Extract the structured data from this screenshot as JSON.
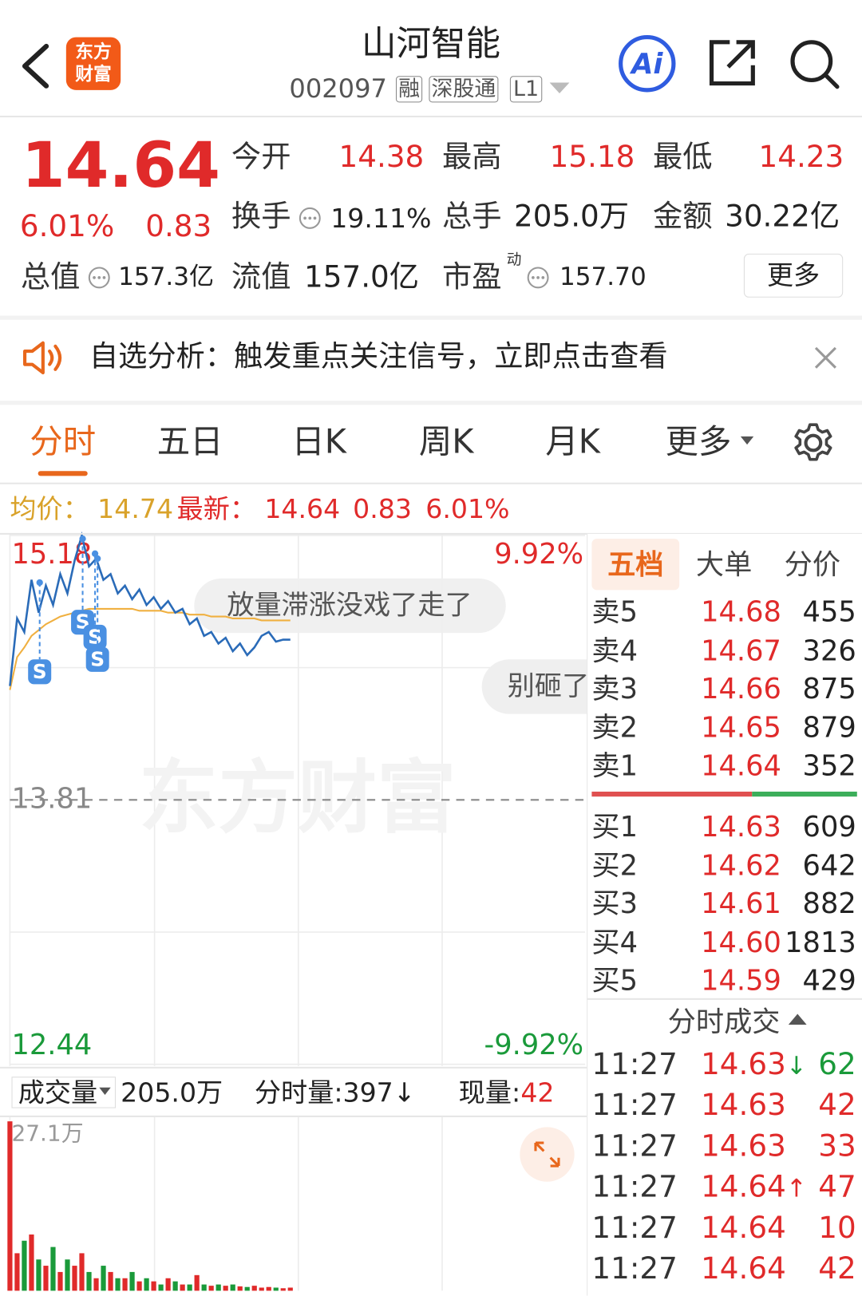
{
  "header": {
    "logo": [
      "东方",
      "财富"
    ],
    "title": "山河智能",
    "code": "002097",
    "tags": [
      "融",
      "深股通",
      "L1"
    ],
    "ai": "Ai"
  },
  "quote": {
    "price": "14.64",
    "change_pct": "6.01%",
    "change": "0.83",
    "open": {
      "label": "今开",
      "value": "14.38"
    },
    "high": {
      "label": "最高",
      "value": "15.18"
    },
    "low": {
      "label": "最低",
      "value": "14.23"
    },
    "turnover": {
      "label": "换手",
      "value": "19.11%"
    },
    "volume": {
      "label": "总手",
      "value": "205.0万"
    },
    "amount": {
      "label": "金额",
      "value": "30.22亿"
    },
    "market_cap": {
      "label": "总值",
      "value": "157.3亿"
    },
    "float_cap": {
      "label": "流值",
      "value": "157.0亿"
    },
    "pe": {
      "label": "市盈",
      "sup": "动",
      "value": "157.70"
    },
    "more": "更多"
  },
  "notice": "自选分析：触发重点关注信号，立即点击查看",
  "tabs": [
    "分时",
    "五日",
    "日K",
    "周K",
    "月K",
    "更多"
  ],
  "info": {
    "avg_label": "均价：",
    "avg": "14.74",
    "last_label": "最新：",
    "last": "14.64",
    "change": "0.83",
    "pct": "6.01%"
  },
  "watermark": "东方财富",
  "chart_notes": {
    "marker": "S",
    "comments": [
      "放量滞涨没戏了走了",
      "别砸了"
    ]
  },
  "chart_data": [
    {
      "type": "line",
      "xlim": [
        0,
        240
      ],
      "x": [
        0,
        3,
        6,
        9,
        12,
        15,
        18,
        21,
        24,
        27,
        30,
        33,
        36,
        39,
        42,
        45,
        48,
        51,
        54,
        57,
        60,
        63,
        66,
        69,
        72,
        75,
        78,
        81,
        84,
        87,
        90,
        93,
        96,
        99,
        102,
        105,
        108,
        111,
        114,
        117
      ],
      "series": [
        {
          "name": "均价：",
          "color": "#f0b040",
          "values": [
            14.38,
            14.55,
            14.6,
            14.66,
            14.69,
            14.72,
            14.74,
            14.76,
            14.77,
            14.78,
            14.79,
            14.8,
            14.8,
            14.8,
            14.8,
            14.8,
            14.8,
            14.8,
            14.79,
            14.79,
            14.79,
            14.79,
            14.78,
            14.78,
            14.78,
            14.77,
            14.77,
            14.77,
            14.76,
            14.76,
            14.76,
            14.75,
            14.75,
            14.75,
            14.75,
            14.74,
            14.74,
            14.74,
            14.74,
            14.74
          ]
        },
        {
          "name": "最新：",
          "color": "#2a6bb8",
          "values": [
            14.4,
            14.75,
            14.68,
            14.95,
            14.78,
            14.92,
            14.82,
            14.98,
            14.88,
            15.05,
            15.18,
            15.02,
            15.06,
            14.95,
            14.98,
            14.88,
            14.92,
            14.85,
            14.9,
            14.82,
            14.86,
            14.8,
            14.84,
            14.78,
            14.8,
            14.72,
            14.75,
            14.66,
            14.68,
            14.62,
            14.65,
            14.58,
            14.62,
            14.56,
            14.6,
            14.66,
            14.68,
            14.63,
            14.64,
            14.64
          ]
        }
      ],
      "ylim": [
        12.44,
        15.18
      ],
      "yticks": [
        15.18,
        13.81,
        12.44
      ],
      "y2lim": [
        -9.92,
        9.92
      ],
      "y2ticks": [
        {
          "value": 9.92,
          "label": "9.92%"
        },
        {
          "value": -9.92,
          "label": "-9.92%"
        }
      ]
    },
    {
      "type": "bar",
      "xlim": [
        0,
        240
      ],
      "x": [
        0,
        3,
        6,
        9,
        12,
        15,
        18,
        21,
        24,
        27,
        30,
        33,
        36,
        39,
        42,
        45,
        48,
        51,
        54,
        57,
        60,
        63,
        66,
        69,
        72,
        75,
        78,
        81,
        84,
        87,
        90,
        93,
        96,
        99,
        102,
        105,
        108,
        111,
        114,
        117
      ],
      "values": [
        27.1,
        6,
        8,
        9,
        5,
        4,
        7,
        3,
        5,
        4,
        6,
        3,
        2,
        4,
        3,
        2,
        2,
        3,
        1.5,
        2,
        1.5,
        1,
        2,
        1.5,
        1,
        1,
        2.5,
        1,
        0.8,
        1,
        0.8,
        1,
        0.7,
        0.6,
        0.8,
        0.5,
        0.6,
        0.5,
        0.4,
        0.5
      ],
      "up_color": "#e02a2a",
      "down_color": "#1a9a3a",
      "ylim": [
        0,
        27.1
      ],
      "yticks": [
        {
          "value": 27.1,
          "label": "27.1万"
        }
      ]
    }
  ],
  "volume_bar": {
    "label": "成交量",
    "total": "205.0万",
    "per_minute": "分时量:397↓",
    "current_label": "现量:",
    "current": "42"
  },
  "order_book": {
    "tabs": [
      "五档",
      "大单",
      "分价"
    ],
    "asks": [
      {
        "label": "卖5",
        "price": "14.68",
        "volume": "455"
      },
      {
        "label": "卖4",
        "price": "14.67",
        "volume": "326"
      },
      {
        "label": "卖3",
        "price": "14.66",
        "volume": "875"
      },
      {
        "label": "卖2",
        "price": "14.65",
        "volume": "879"
      },
      {
        "label": "卖1",
        "price": "14.64",
        "volume": "352"
      }
    ],
    "bids": [
      {
        "label": "买1",
        "price": "14.63",
        "volume": "609"
      },
      {
        "label": "买2",
        "price": "14.62",
        "volume": "642"
      },
      {
        "label": "买3",
        "price": "14.61",
        "volume": "882"
      },
      {
        "label": "买4",
        "price": "14.60",
        "volume": "1813"
      },
      {
        "label": "买5",
        "price": "14.59",
        "volume": "429"
      }
    ]
  },
  "trades": {
    "title": "分时成交",
    "rows": [
      {
        "time": "11:27",
        "price": "14.63",
        "flag": "↓",
        "flag_color": "#1a9a3a",
        "volume": "62",
        "color": "#1a9a3a"
      },
      {
        "time": "11:27",
        "price": "14.63",
        "volume": "42",
        "color": "#e02a2a"
      },
      {
        "time": "11:27",
        "price": "14.63",
        "volume": "33",
        "color": "#e02a2a"
      },
      {
        "time": "11:27",
        "price": "14.64",
        "flag": "↑",
        "flag_color": "#e02a2a",
        "volume": "47",
        "color": "#e02a2a"
      },
      {
        "time": "11:27",
        "price": "14.64",
        "volume": "10",
        "color": "#e02a2a"
      },
      {
        "time": "11:27",
        "price": "14.64",
        "volume": "42",
        "color": "#e02a2a"
      }
    ]
  }
}
